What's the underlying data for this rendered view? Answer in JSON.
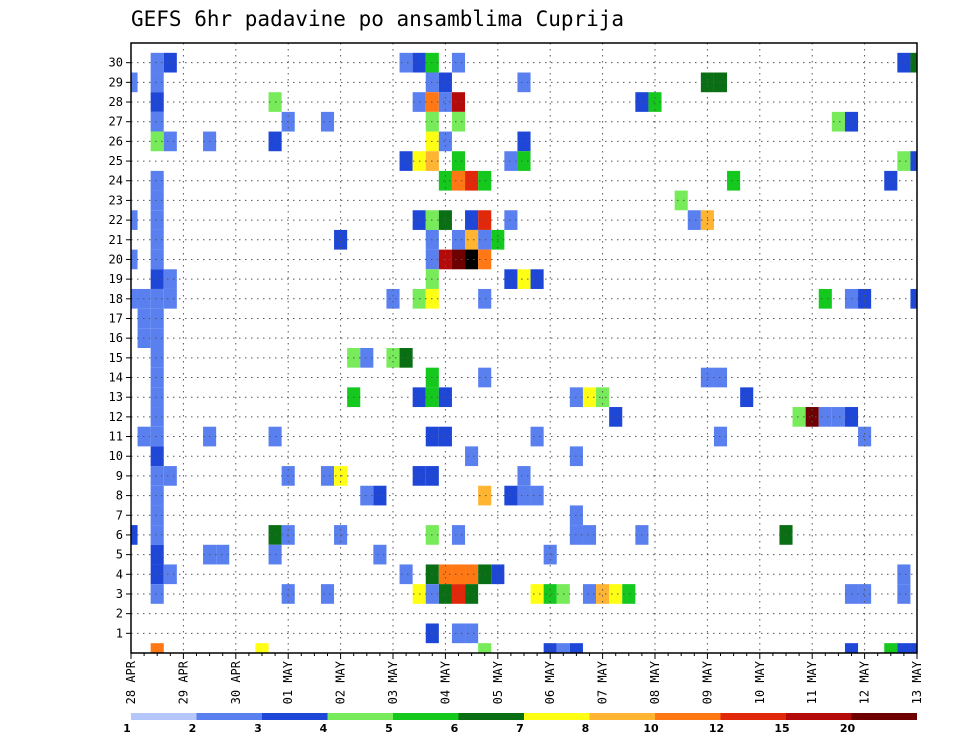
{
  "chart_data": {
    "type": "heatmap",
    "title": "GEFS 6hr padavine po ansamblima Cuprija",
    "x_ticks": [
      "28 APR",
      "29 APR",
      "30 APR",
      "01 MAY",
      "02 MAY",
      "03 MAY",
      "04 MAY",
      "05 MAY",
      "06 MAY",
      "07 MAY",
      "08 MAY",
      "09 MAY",
      "10 MAY",
      "11 MAY",
      "12 MAY",
      "13 MAY"
    ],
    "y_ticks": [
      "1",
      "2",
      "3",
      "4",
      "5",
      "6",
      "7",
      "8",
      "9",
      "10",
      "11",
      "12",
      "13",
      "14",
      "15",
      "16",
      "17",
      "18",
      "19",
      "20",
      "21",
      "22",
      "23",
      "24",
      "25",
      "26",
      "27",
      "28",
      "29",
      "30"
    ],
    "x_range_steps": [
      0,
      60
    ],
    "y_range_members": [
      0,
      30
    ],
    "grid": "dotted",
    "legend": "bottom",
    "colorbar": {
      "labels": [
        "1",
        "2",
        "3",
        "4",
        "5",
        "6",
        "7",
        "8",
        "10",
        "12",
        "15",
        "20"
      ],
      "colors": [
        "#b4c6fa",
        "#5a80f0",
        "#1e46d7",
        "#78eb5a",
        "#14c81e",
        "#0a6e14",
        "#ffff14",
        "#ffb432",
        "#ff7814",
        "#e1280a",
        "#b40a0a",
        "#6e0000"
      ]
    },
    "cells": [
      [
        30,
        2,
        1
      ],
      [
        30,
        3,
        2
      ],
      [
        30,
        21,
        1
      ],
      [
        30,
        22,
        2
      ],
      [
        30,
        23,
        4
      ],
      [
        30,
        25,
        1
      ],
      [
        30,
        59,
        2
      ],
      [
        30,
        60,
        5
      ],
      [
        29,
        0,
        1
      ],
      [
        29,
        2,
        1
      ],
      [
        29,
        23,
        1
      ],
      [
        29,
        24,
        2
      ],
      [
        29,
        30,
        1
      ],
      [
        29,
        44,
        5
      ],
      [
        29,
        45,
        5
      ],
      [
        28,
        2,
        2
      ],
      [
        28,
        11,
        3
      ],
      [
        28,
        22,
        1
      ],
      [
        28,
        23,
        8
      ],
      [
        28,
        24,
        1
      ],
      [
        28,
        25,
        10
      ],
      [
        28,
        39,
        2
      ],
      [
        28,
        40,
        4
      ],
      [
        27,
        2,
        1
      ],
      [
        27,
        12,
        1
      ],
      [
        27,
        15,
        1
      ],
      [
        27,
        23,
        3
      ],
      [
        27,
        25,
        3
      ],
      [
        27,
        54,
        3
      ],
      [
        27,
        55,
        2
      ],
      [
        26,
        2,
        3
      ],
      [
        26,
        3,
        1
      ],
      [
        26,
        6,
        1
      ],
      [
        26,
        11,
        2
      ],
      [
        26,
        23,
        6
      ],
      [
        26,
        24,
        1
      ],
      [
        26,
        30,
        2
      ],
      [
        25,
        21,
        2
      ],
      [
        25,
        22,
        6
      ],
      [
        25,
        23,
        7
      ],
      [
        25,
        25,
        4
      ],
      [
        25,
        29,
        1
      ],
      [
        25,
        30,
        4
      ],
      [
        25,
        59,
        3
      ],
      [
        25,
        60,
        2
      ],
      [
        24,
        2,
        1
      ],
      [
        24,
        24,
        4
      ],
      [
        24,
        25,
        8
      ],
      [
        24,
        26,
        9
      ],
      [
        24,
        27,
        4
      ],
      [
        24,
        46,
        4
      ],
      [
        24,
        58,
        2
      ],
      [
        23,
        2,
        1
      ],
      [
        23,
        42,
        3
      ],
      [
        22,
        0,
        1
      ],
      [
        22,
        2,
        1
      ],
      [
        22,
        22,
        2
      ],
      [
        22,
        23,
        3
      ],
      [
        22,
        24,
        5
      ],
      [
        22,
        26,
        2
      ],
      [
        22,
        27,
        9
      ],
      [
        22,
        29,
        1
      ],
      [
        22,
        43,
        1
      ],
      [
        22,
        44,
        7
      ],
      [
        21,
        2,
        1
      ],
      [
        21,
        16,
        2
      ],
      [
        21,
        23,
        1
      ],
      [
        21,
        25,
        1
      ],
      [
        21,
        26,
        7
      ],
      [
        21,
        27,
        1
      ],
      [
        21,
        28,
        4
      ],
      [
        20,
        0,
        1
      ],
      [
        20,
        2,
        1
      ],
      [
        20,
        23,
        1
      ],
      [
        20,
        24,
        10
      ],
      [
        20,
        25,
        11
      ],
      [
        20,
        26,
        12
      ],
      [
        20,
        27,
        8
      ],
      [
        19,
        2,
        2
      ],
      [
        19,
        3,
        1
      ],
      [
        19,
        23,
        3
      ],
      [
        19,
        29,
        2
      ],
      [
        19,
        30,
        6
      ],
      [
        19,
        31,
        2
      ],
      [
        18,
        0,
        1
      ],
      [
        18,
        1,
        1
      ],
      [
        18,
        2,
        1
      ],
      [
        18,
        3,
        1
      ],
      [
        18,
        20,
        1
      ],
      [
        18,
        22,
        3
      ],
      [
        18,
        23,
        6
      ],
      [
        18,
        27,
        1
      ],
      [
        18,
        53,
        4
      ],
      [
        18,
        55,
        1
      ],
      [
        18,
        56,
        2
      ],
      [
        18,
        60,
        2
      ],
      [
        17,
        1,
        1
      ],
      [
        17,
        2,
        1
      ],
      [
        16,
        1,
        1
      ],
      [
        16,
        2,
        1
      ],
      [
        15,
        2,
        1
      ],
      [
        15,
        17,
        3
      ],
      [
        15,
        18,
        1
      ],
      [
        15,
        20,
        3
      ],
      [
        15,
        21,
        5
      ],
      [
        14,
        2,
        1
      ],
      [
        14,
        23,
        4
      ],
      [
        14,
        27,
        1
      ],
      [
        14,
        44,
        1
      ],
      [
        14,
        45,
        1
      ],
      [
        13,
        2,
        1
      ],
      [
        13,
        17,
        4
      ],
      [
        13,
        22,
        2
      ],
      [
        13,
        23,
        4
      ],
      [
        13,
        24,
        2
      ],
      [
        13,
        34,
        1
      ],
      [
        13,
        35,
        6
      ],
      [
        13,
        36,
        3
      ],
      [
        13,
        47,
        2
      ],
      [
        12,
        2,
        1
      ],
      [
        12,
        37,
        2
      ],
      [
        12,
        51,
        3
      ],
      [
        12,
        52,
        11
      ],
      [
        12,
        53,
        1
      ],
      [
        12,
        54,
        1
      ],
      [
        12,
        55,
        2
      ],
      [
        11,
        1,
        1
      ],
      [
        11,
        2,
        1
      ],
      [
        11,
        6,
        1
      ],
      [
        11,
        11,
        1
      ],
      [
        11,
        23,
        2
      ],
      [
        11,
        24,
        2
      ],
      [
        11,
        31,
        1
      ],
      [
        11,
        45,
        1
      ],
      [
        11,
        56,
        1
      ],
      [
        10,
        2,
        2
      ],
      [
        10,
        26,
        1
      ],
      [
        10,
        34,
        1
      ],
      [
        9,
        2,
        1
      ],
      [
        9,
        3,
        1
      ],
      [
        9,
        12,
        1
      ],
      [
        9,
        15,
        1
      ],
      [
        9,
        16,
        6
      ],
      [
        9,
        22,
        2
      ],
      [
        9,
        23,
        2
      ],
      [
        9,
        30,
        1
      ],
      [
        8,
        2,
        1
      ],
      [
        8,
        18,
        1
      ],
      [
        8,
        19,
        2
      ],
      [
        8,
        27,
        7
      ],
      [
        8,
        29,
        2
      ],
      [
        8,
        30,
        1
      ],
      [
        8,
        31,
        1
      ],
      [
        7,
        2,
        1
      ],
      [
        7,
        34,
        1
      ],
      [
        6,
        0,
        2
      ],
      [
        6,
        2,
        1
      ],
      [
        6,
        11,
        5
      ],
      [
        6,
        12,
        1
      ],
      [
        6,
        16,
        1
      ],
      [
        6,
        23,
        3
      ],
      [
        6,
        25,
        1
      ],
      [
        6,
        34,
        1
      ],
      [
        6,
        35,
        1
      ],
      [
        6,
        39,
        1
      ],
      [
        6,
        50,
        5
      ],
      [
        5,
        2,
        2
      ],
      [
        5,
        6,
        1
      ],
      [
        5,
        7,
        1
      ],
      [
        5,
        11,
        1
      ],
      [
        5,
        19,
        1
      ],
      [
        5,
        32,
        1
      ],
      [
        4,
        2,
        2
      ],
      [
        4,
        3,
        1
      ],
      [
        4,
        21,
        1
      ],
      [
        4,
        23,
        5
      ],
      [
        4,
        24,
        8
      ],
      [
        4,
        25,
        8
      ],
      [
        4,
        26,
        8
      ],
      [
        4,
        27,
        5
      ],
      [
        4,
        28,
        2
      ],
      [
        4,
        59,
        1
      ],
      [
        3,
        2,
        1
      ],
      [
        3,
        12,
        1
      ],
      [
        3,
        15,
        1
      ],
      [
        3,
        22,
        6
      ],
      [
        3,
        23,
        1
      ],
      [
        3,
        24,
        5
      ],
      [
        3,
        25,
        9
      ],
      [
        3,
        26,
        5
      ],
      [
        3,
        31,
        6
      ],
      [
        3,
        32,
        4
      ],
      [
        3,
        33,
        3
      ],
      [
        3,
        35,
        1
      ],
      [
        3,
        36,
        7
      ],
      [
        3,
        37,
        6
      ],
      [
        3,
        38,
        4
      ],
      [
        3,
        55,
        1
      ],
      [
        3,
        56,
        1
      ],
      [
        3,
        59,
        1
      ],
      [
        1,
        23,
        2
      ],
      [
        1,
        25,
        1
      ],
      [
        1,
        26,
        1
      ],
      [
        0,
        2,
        8
      ],
      [
        0,
        10,
        6
      ],
      [
        0,
        27,
        3
      ],
      [
        0,
        32,
        2
      ],
      [
        0,
        33,
        1
      ],
      [
        0,
        34,
        2
      ],
      [
        0,
        55,
        2
      ],
      [
        0,
        58,
        4
      ],
      [
        0,
        59,
        2
      ],
      [
        0,
        60,
        2
      ]
    ]
  }
}
